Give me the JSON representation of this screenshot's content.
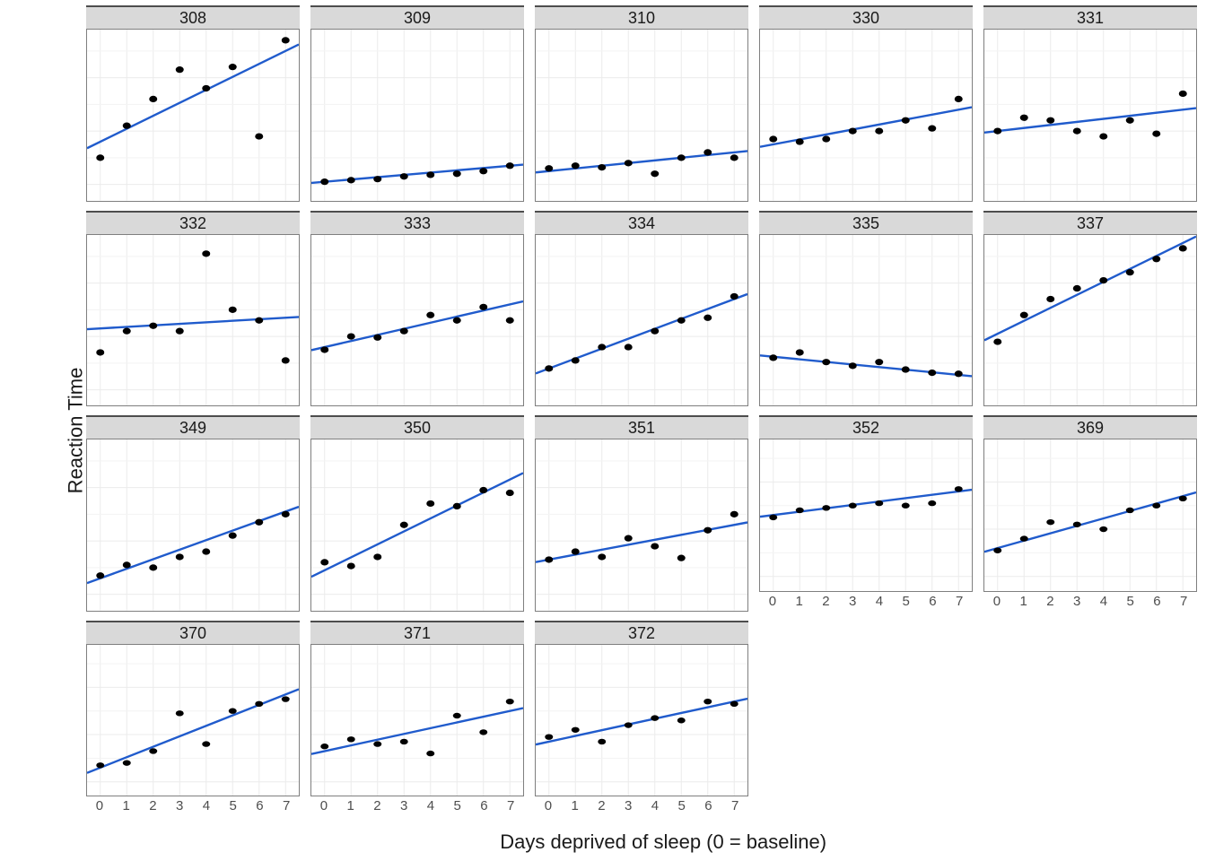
{
  "chart": {
    "type": "faceted_scatter_with_fit",
    "xlabel": "Days deprived of sleep (0 = baseline)",
    "ylabel": "Reaction Time",
    "label_fontsize": 22,
    "strip_fontsize": 18,
    "tick_fontsize": 15,
    "background_color": "#ffffff",
    "grid_color": "#ebebeb",
    "grid_minor_color": "#f3f3f3",
    "panel_border_color": "#7f7f7f",
    "strip_bg": "#d9d9d9",
    "strip_topborder": "#4d4d4d",
    "point_color": "#000000",
    "point_radius": 4.2,
    "line_color": "#205bcc",
    "line_width": 2.4,
    "facet_layout": {
      "rows": 4,
      "cols": 5
    },
    "xlim": [
      -0.5,
      7.5
    ],
    "ylim": [
      170,
      490
    ],
    "xticks": [
      0,
      1,
      2,
      3,
      4,
      5,
      6,
      7
    ],
    "yticks": [
      200,
      300,
      400
    ],
    "y_minor_ticks": [
      250,
      350,
      450
    ],
    "show_yticks_only_first_col": true,
    "xticks_on_last_facet_in_column": true,
    "panels": [
      {
        "title": "308",
        "x": [
          0,
          1,
          2,
          3,
          4,
          5,
          6,
          7
        ],
        "y": [
          250,
          310,
          360,
          415,
          380,
          420,
          290,
          470
        ],
        "fit_y0": 280,
        "fit_y7": 450
      },
      {
        "title": "309",
        "x": [
          0,
          1,
          2,
          3,
          4,
          5,
          6,
          7
        ],
        "y": [
          205,
          208,
          210,
          215,
          218,
          220,
          225,
          235
        ],
        "fit_y0": 205,
        "fit_y7": 235
      },
      {
        "title": "310",
        "x": [
          0,
          1,
          2,
          3,
          4,
          5,
          6,
          7
        ],
        "y": [
          230,
          235,
          232,
          240,
          220,
          250,
          260,
          250
        ],
        "fit_y0": 225,
        "fit_y7": 260
      },
      {
        "title": "330",
        "x": [
          0,
          1,
          2,
          3,
          4,
          5,
          6,
          7
        ],
        "y": [
          285,
          280,
          285,
          300,
          300,
          320,
          305,
          360
        ],
        "fit_y0": 275,
        "fit_y7": 340
      },
      {
        "title": "331",
        "x": [
          0,
          1,
          2,
          3,
          4,
          5,
          6,
          7
        ],
        "y": [
          300,
          325,
          320,
          300,
          290,
          320,
          295,
          370
        ],
        "fit_y0": 300,
        "fit_y7": 340
      },
      {
        "title": "332",
        "x": [
          0,
          1,
          2,
          3,
          4,
          5,
          6,
          7
        ],
        "y": [
          270,
          310,
          320,
          310,
          455,
          350,
          330,
          255
        ],
        "fit_y0": 315,
        "fit_y7": 335
      },
      {
        "title": "333",
        "x": [
          0,
          1,
          2,
          3,
          4,
          5,
          6,
          7
        ],
        "y": [
          275,
          300,
          298,
          310,
          340,
          330,
          355,
          330
        ],
        "fit_y0": 280,
        "fit_y7": 360
      },
      {
        "title": "334",
        "x": [
          0,
          1,
          2,
          3,
          4,
          5,
          6,
          7
        ],
        "y": [
          240,
          255,
          280,
          280,
          310,
          330,
          335,
          375
        ],
        "fit_y0": 240,
        "fit_y7": 370
      },
      {
        "title": "335",
        "x": [
          0,
          1,
          2,
          3,
          4,
          5,
          6,
          7
        ],
        "y": [
          260,
          270,
          252,
          245,
          252,
          238,
          232,
          230
        ],
        "fit_y0": 262,
        "fit_y7": 228
      },
      {
        "title": "337",
        "x": [
          0,
          1,
          2,
          3,
          4,
          5,
          6,
          7
        ],
        "y": [
          290,
          340,
          370,
          390,
          405,
          420,
          445,
          465
        ],
        "fit_y0": 305,
        "fit_y7": 475
      },
      {
        "title": "349",
        "x": [
          0,
          1,
          2,
          3,
          4,
          5,
          6,
          7
        ],
        "y": [
          235,
          255,
          250,
          270,
          280,
          310,
          335,
          350
        ],
        "fit_y0": 230,
        "fit_y7": 355
      },
      {
        "title": "350",
        "x": [
          0,
          1,
          2,
          3,
          4,
          5,
          6,
          7
        ],
        "y": [
          260,
          253,
          270,
          330,
          370,
          365,
          395,
          390
        ],
        "fit_y0": 245,
        "fit_y7": 415
      },
      {
        "title": "351",
        "x": [
          0,
          1,
          2,
          3,
          4,
          5,
          6,
          7
        ],
        "y": [
          265,
          280,
          270,
          305,
          290,
          268,
          320,
          350
        ],
        "fit_y0": 265,
        "fit_y7": 330
      },
      {
        "title": "352",
        "x": [
          0,
          1,
          2,
          3,
          4,
          5,
          6,
          7
        ],
        "y": [
          325,
          340,
          345,
          350,
          355,
          350,
          355,
          385
        ],
        "fit_y0": 330,
        "fit_y7": 380
      },
      {
        "title": "369",
        "x": [
          0,
          1,
          2,
          3,
          4,
          5,
          6,
          7
        ],
        "y": [
          255,
          280,
          315,
          310,
          300,
          340,
          350,
          365
        ],
        "fit_y0": 260,
        "fit_y7": 370
      },
      {
        "title": "370",
        "x": [
          0,
          1,
          2,
          3,
          4,
          5,
          6,
          7
        ],
        "y": [
          235,
          240,
          265,
          345,
          280,
          350,
          365,
          375
        ],
        "fit_y0": 230,
        "fit_y7": 385
      },
      {
        "title": "371",
        "x": [
          0,
          1,
          2,
          3,
          4,
          5,
          6,
          7
        ],
        "y": [
          275,
          290,
          280,
          285,
          260,
          340,
          305,
          370
        ],
        "fit_y0": 265,
        "fit_y7": 350
      },
      {
        "title": "372",
        "x": [
          0,
          1,
          2,
          3,
          4,
          5,
          6,
          7
        ],
        "y": [
          295,
          310,
          285,
          320,
          335,
          330,
          370,
          365
        ],
        "fit_y0": 285,
        "fit_y7": 370
      }
    ]
  }
}
